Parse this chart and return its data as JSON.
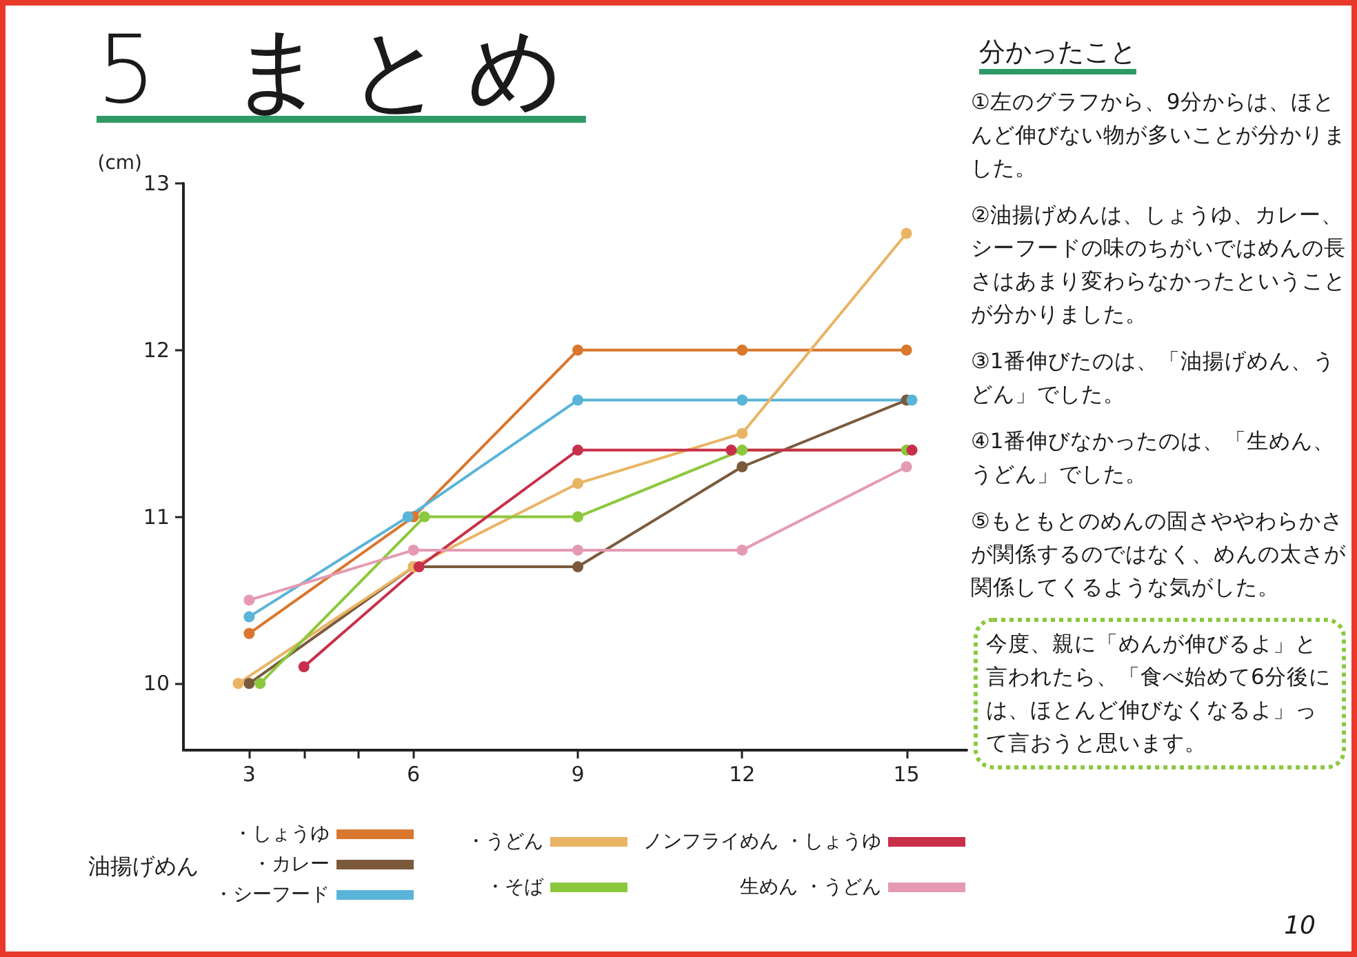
{
  "chart_data": {
    "type": "line",
    "title": "5 まとめ",
    "ylabel": "(cm)",
    "legend_title": "油揚げめん",
    "x": [
      3,
      6,
      9,
      12,
      15
    ],
    "series": [
      {
        "name": "・しょうゆ",
        "color": "#d9772e",
        "values": [
          10.3,
          11.0,
          12.0,
          12.0,
          12.0
        ]
      },
      {
        "name": "・カレー",
        "color": "#7b5a3c",
        "values": [
          10.0,
          10.7,
          10.7,
          11.3,
          11.7
        ]
      },
      {
        "name": "・シーフード",
        "color": "#5ab4d8",
        "x": [
          3,
          5.9,
          9,
          12,
          15.1
        ],
        "values": [
          10.4,
          11.0,
          11.7,
          11.7,
          11.7
        ]
      },
      {
        "name": "・うどん",
        "color": "#e9b464",
        "x": [
          2.8,
          6,
          9,
          12,
          15
        ],
        "values": [
          10.0,
          10.7,
          11.2,
          11.5,
          12.7
        ]
      },
      {
        "name": "・そば",
        "color": "#8cc83e",
        "x": [
          3.2,
          6.2,
          9,
          12,
          15
        ],
        "values": [
          10.0,
          11.0,
          11.0,
          11.4,
          11.4
        ]
      },
      {
        "name": "ノンフライめん ・しょうゆ",
        "color": "#c8304a",
        "x": [
          4,
          6.1,
          9,
          11.8,
          15.1
        ],
        "values": [
          10.1,
          10.7,
          11.4,
          11.4,
          11.4
        ]
      },
      {
        "name": "生めん ・うどん",
        "color": "#e59ab2",
        "values": [
          10.5,
          10.8,
          10.8,
          10.8,
          11.3
        ]
      }
    ],
    "xlim": [
      1.8,
      16.1
    ],
    "xticks": [
      3,
      {
        "value": 4,
        "label": null
      },
      {
        "value": 5,
        "label": null
      },
      6,
      9,
      12,
      15
    ],
    "ylim": [
      9.6,
      13
    ],
    "yticks": [
      10,
      11,
      12,
      13
    ],
    "grid": false,
    "legend": "bottom",
    "marker": "circle",
    "line_style": "solid",
    "annotations": [
      "分かったこと",
      "①左のグラフから、9分からは、ほとんど伸びない物が多いことが分かりました。",
      "②油揚げめんは、しょうゆ、カレー、シーフードの味のちがいではめんの長さはあまり変わらなかったということが分かりました。",
      "③1番伸びたのは、「油揚げめん、うどん」でした。",
      "④1番伸びなかったのは、「生めん、うどん」でした。",
      "⑤もともとのめんの固さややわらかさが関係するのではなく、めんの太さが関係してくるような気がした。",
      "今度、親に「めんが伸びるよ」と言われたら、「食べ始めて6分後には、ほとんど伸びなくなるよ」って言おうと思います。",
      "10"
    ]
  }
}
